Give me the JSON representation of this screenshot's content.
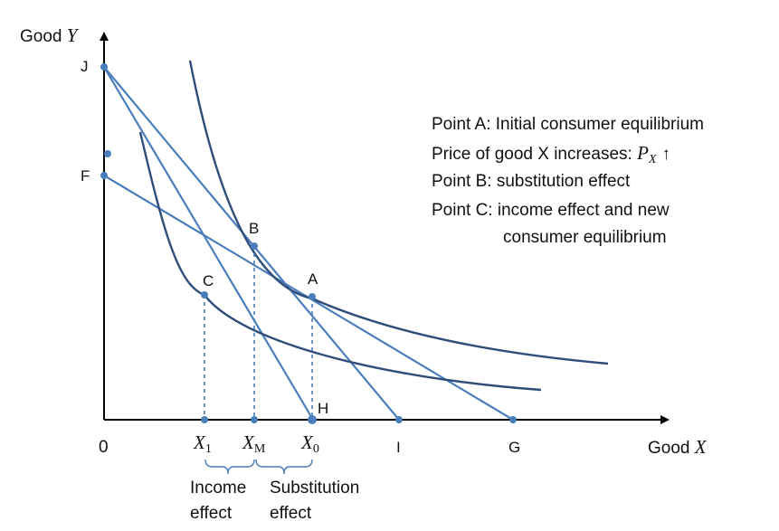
{
  "axes": {
    "y_label_text": "Good",
    "y_label_var": "Y",
    "x_label_text": "Good",
    "x_label_var": "X",
    "origin": "0"
  },
  "points": {
    "J": "J",
    "F": "F",
    "A": "A",
    "B": "B",
    "C": "C",
    "H": "H",
    "I": "I",
    "G": "G"
  },
  "x_ticks": {
    "x1_var": "X",
    "x1_sub": "1",
    "xm_var": "X",
    "xm_sub": "M",
    "x0_var": "X",
    "x0_sub": "0"
  },
  "effects": {
    "income_line1": "Income",
    "income_line2": "effect",
    "substitution_line1": "Substitution",
    "substitution_line2": "effect"
  },
  "notes": {
    "line1": "Point A: Initial consumer equilibrium",
    "line2_text": "Price of good X increases:",
    "line2_var": "P",
    "line2_sub": "X",
    "line2_arrow": "↑",
    "line3": "Point B: substitution effect",
    "line4": "Point C: income effect and new",
    "line5": "consumer equilibrium"
  },
  "colors": {
    "axis": "#000000",
    "line": "#4a7ebb",
    "curve": "#2f4e7c",
    "point": "#4a7ebb",
    "guide": "#4a7ebb"
  }
}
